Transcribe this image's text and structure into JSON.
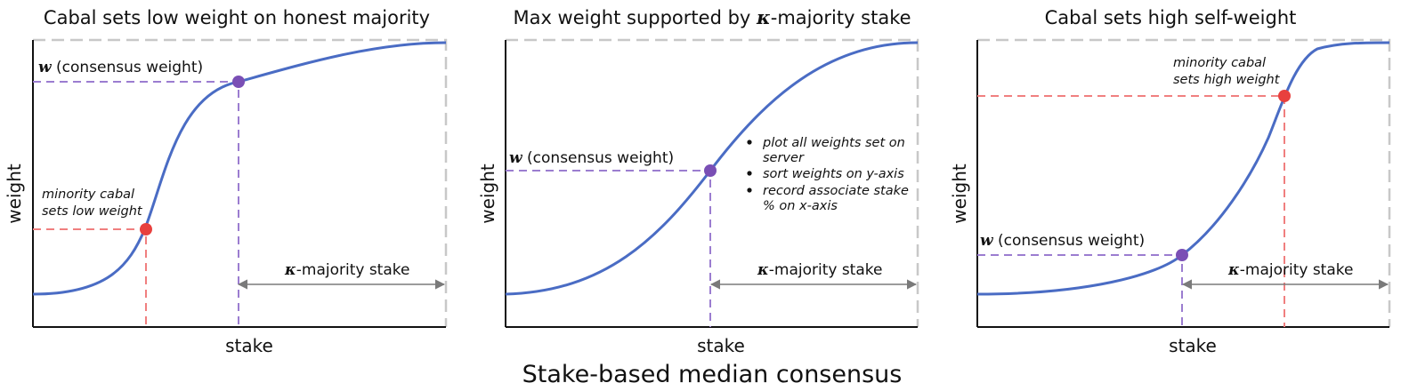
{
  "colors": {
    "curve": "#4a6cc4",
    "purple": "#9b7dd0",
    "purple_dot": "#7a4fb5",
    "red": "#f07f7f",
    "red_dot": "#e8403e",
    "axis": "#111111",
    "frame": "#c8c8c8",
    "arrow": "#7a7a7a"
  },
  "caption": "Stake-based median consensus",
  "panels": [
    {
      "title": "Cabal sets low weight on honest majority",
      "xlabel": "stake",
      "ylabel": "weight",
      "consensus_symbol": "w",
      "consensus_text": " (consensus weight)",
      "kappa_symbol": "κ",
      "kappa_text": "-majority stake",
      "cabal_line1": "minority cabal",
      "cabal_line2": "sets low weight"
    },
    {
      "title_text": "Max weight supported by ",
      "title_symbol": "κ",
      "title_suffix": "-majority stake",
      "xlabel": "stake",
      "ylabel": "weight",
      "consensus_symbol": "w",
      "consensus_text": " (consensus weight)",
      "kappa_symbol": "κ",
      "kappa_text": "-majority stake",
      "bullets": [
        [
          "plot all weights set on",
          "server"
        ],
        [
          "sort weights on y-axis"
        ],
        [
          "record associate stake",
          "% on x-axis"
        ]
      ]
    },
    {
      "title": "Cabal sets high self-weight",
      "xlabel": "stake",
      "ylabel": "weight",
      "consensus_symbol": "w",
      "consensus_text": " (consensus weight)",
      "kappa_symbol": "κ",
      "kappa_text": "-majority stake",
      "cabal_line1": "minority cabal",
      "cabal_line2": "sets high weight"
    }
  ]
}
